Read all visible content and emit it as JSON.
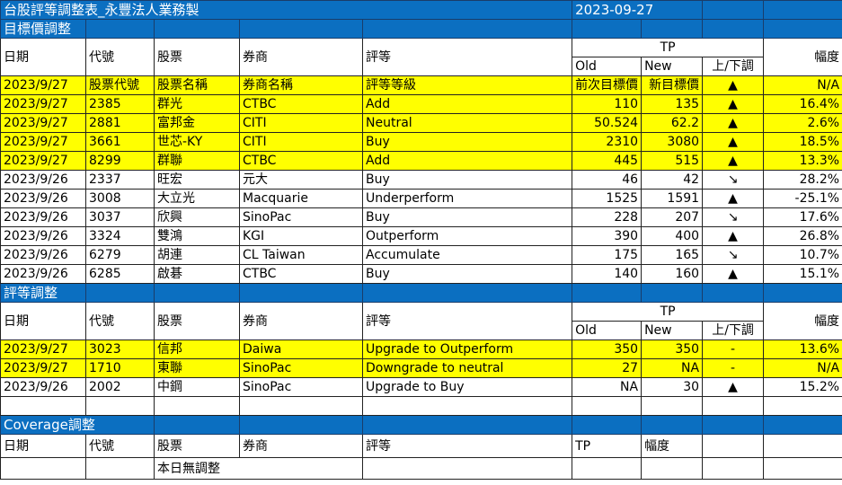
{
  "title": "台股評等調整表_永豐法人業務製",
  "date": "2023-09-27",
  "colors": {
    "header_blue": "#0b6fc1",
    "highlight": "#ffff00"
  },
  "headers": {
    "date": "日期",
    "code": "代號",
    "stock": "股票",
    "broker": "券商",
    "rating": "評等",
    "tp": "TP",
    "old": "Old",
    "new": "New",
    "dir": "上/下調",
    "range": "幅度"
  },
  "target_section": {
    "title": "目標價調整",
    "rows": [
      {
        "date": "2023/9/27",
        "code": "股票代號",
        "stock": "股票名稱",
        "broker": "券商名稱",
        "rating": "評等等級",
        "old": "前次目標價",
        "new": "新目標價",
        "dir": "▲",
        "range": "N/A",
        "hl": true
      },
      {
        "date": "2023/9/27",
        "code": "2385",
        "stock": "群光",
        "broker": "CTBC",
        "rating": "Add",
        "old": "110",
        "new": "135",
        "dir": "▲",
        "range": "16.4%",
        "hl": true
      },
      {
        "date": "2023/9/27",
        "code": "2881",
        "stock": "富邦金",
        "broker": "CITI",
        "rating": "Neutral",
        "old": "50.524",
        "new": "62.2",
        "dir": "▲",
        "range": "2.6%",
        "hl": true
      },
      {
        "date": "2023/9/27",
        "code": "3661",
        "stock": "世芯-KY",
        "broker": "CITI",
        "rating": "Buy",
        "old": "2310",
        "new": "3080",
        "dir": "▲",
        "range": "18.5%",
        "hl": true
      },
      {
        "date": "2023/9/27",
        "code": "8299",
        "stock": "群聯",
        "broker": "CTBC",
        "rating": "Add",
        "old": "445",
        "new": "515",
        "dir": "▲",
        "range": "13.3%",
        "hl": true
      },
      {
        "date": "2023/9/26",
        "code": "2337",
        "stock": "旺宏",
        "broker": "元大",
        "rating": "Buy",
        "old": "46",
        "new": "42",
        "dir": "↘",
        "range": "28.2%",
        "hl": false
      },
      {
        "date": "2023/9/26",
        "code": "3008",
        "stock": "大立光",
        "broker": "Macquarie",
        "rating": "Underperform",
        "old": "1525",
        "new": "1591",
        "dir": "▲",
        "range": "-25.1%",
        "hl": false
      },
      {
        "date": "2023/9/26",
        "code": "3037",
        "stock": "欣興",
        "broker": "SinoPac",
        "rating": "Buy",
        "old": "228",
        "new": "207",
        "dir": "↘",
        "range": "17.6%",
        "hl": false
      },
      {
        "date": "2023/9/26",
        "code": "3324",
        "stock": "雙鴻",
        "broker": "KGI",
        "rating": "Outperform",
        "old": "390",
        "new": "400",
        "dir": "▲",
        "range": "26.8%",
        "hl": false
      },
      {
        "date": "2023/9/26",
        "code": "6279",
        "stock": "胡連",
        "broker": "CL Taiwan",
        "rating": "Accumulate",
        "old": "175",
        "new": "165",
        "dir": "↘",
        "range": "10.7%",
        "hl": false
      },
      {
        "date": "2023/9/26",
        "code": "6285",
        "stock": "啟碁",
        "broker": "CTBC",
        "rating": "Buy",
        "old": "140",
        "new": "160",
        "dir": "▲",
        "range": "15.1%",
        "hl": false
      }
    ]
  },
  "rating_section": {
    "title": "評等調整",
    "rows": [
      {
        "date": "2023/9/27",
        "code": "3023",
        "stock": "信邦",
        "broker": "Daiwa",
        "rating": "Upgrade to Outperform",
        "old": "350",
        "new": "350",
        "dir": "-",
        "range": "13.6%",
        "hl": true
      },
      {
        "date": "2023/9/27",
        "code": "1710",
        "stock": "東聯",
        "broker": "SinoPac",
        "rating": "Downgrade to neutral",
        "old": "27",
        "new": "NA",
        "dir": "-",
        "range": "N/A",
        "hl": true
      },
      {
        "date": "2023/9/26",
        "code": "2002",
        "stock": "中鋼",
        "broker": "SinoPac",
        "rating": "Upgrade to Buy",
        "old": "NA",
        "new": "30",
        "dir": "▲",
        "range": "15.2%",
        "hl": false
      }
    ]
  },
  "coverage_section": {
    "title": "Coverage調整",
    "note": "本日無調整"
  }
}
